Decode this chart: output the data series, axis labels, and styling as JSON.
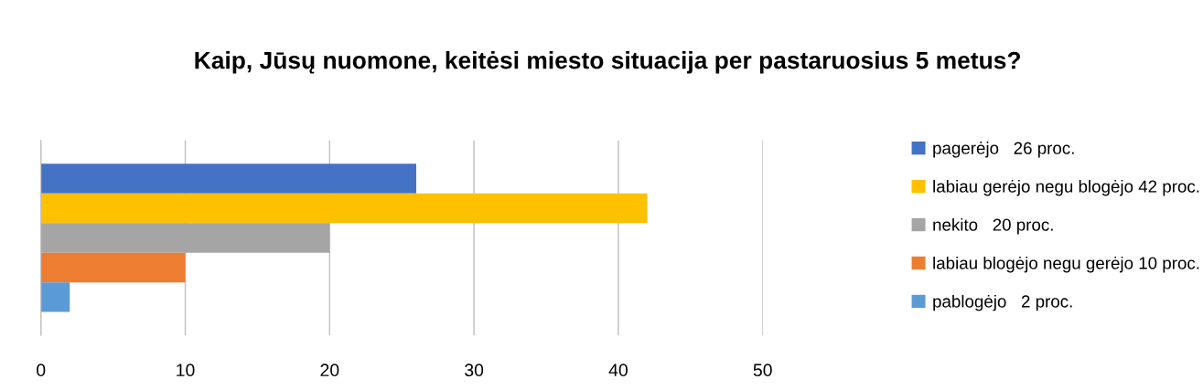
{
  "chart_data": {
    "type": "bar",
    "orientation": "horizontal",
    "title": "Kaip, Jūsų nuomone, keitėsi miesto situacija per pastaruosius 5 metus?",
    "categories": [
      null
    ],
    "series": [
      {
        "name": "pagerėjo   26 proc.",
        "color": "#4472c4",
        "values": [
          26
        ]
      },
      {
        "name": "labiau gerėjo negu blogėjo 42 proc.",
        "color": "#ffc000",
        "values": [
          42
        ]
      },
      {
        "name": "nekito   20 proc.",
        "color": "#a5a5a5",
        "values": [
          20
        ]
      },
      {
        "name": "labiau blogėjo negu gerėjo 10 proc.",
        "color": "#ed7d31",
        "values": [
          10
        ]
      },
      {
        "name": "pablogėjo   2 proc.",
        "color": "#5b9bd5",
        "values": [
          2
        ]
      }
    ],
    "xlim": [
      0,
      50
    ],
    "xticks": [
      0,
      10,
      20,
      30,
      40,
      50
    ],
    "grid": "x",
    "legend": "right"
  }
}
